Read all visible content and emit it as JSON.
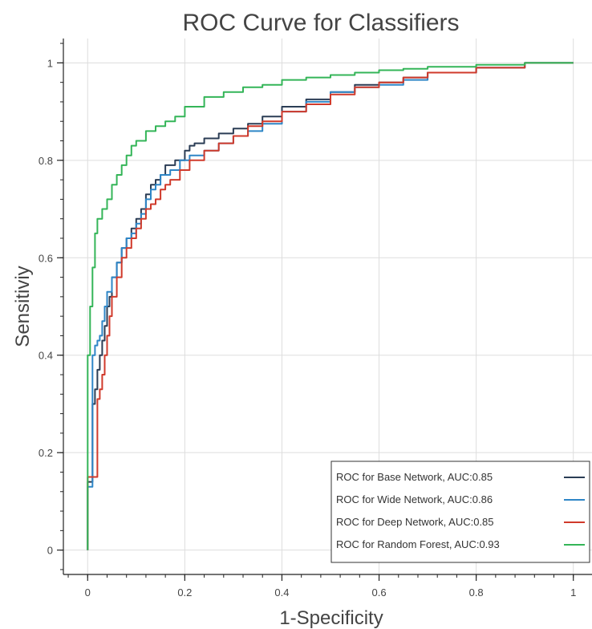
{
  "chart_data": {
    "type": "line",
    "title": "ROC Curve for Classifiers",
    "xlabel": "1-Specificity",
    "ylabel": "Sensitiviy",
    "xlim": [
      -0.05,
      1.05
    ],
    "ylim": [
      -0.05,
      1.05
    ],
    "xticks": [
      0,
      0.2,
      0.4,
      0.6,
      0.8,
      1
    ],
    "xtick_labels": [
      "0",
      "0.2",
      "0.4",
      "0.6",
      "0.8",
      "1"
    ],
    "yticks": [
      0,
      0.2,
      0.4,
      0.6,
      0.8,
      1
    ],
    "ytick_labels": [
      "0",
      "0.2",
      "0.4",
      "0.6",
      "0.8",
      "1"
    ],
    "grid": true,
    "legend_position": "bottom-right",
    "series": [
      {
        "name": "ROC for Base Network, AUC:0.85",
        "color": "#2b3d55",
        "x": [
          0,
          0,
          0.01,
          0.015,
          0.02,
          0.025,
          0.03,
          0.035,
          0.04,
          0.045,
          0.05,
          0.06,
          0.07,
          0.08,
          0.09,
          0.1,
          0.11,
          0.12,
          0.13,
          0.14,
          0.15,
          0.16,
          0.18,
          0.2,
          0.21,
          0.22,
          0.24,
          0.27,
          0.3,
          0.33,
          0.36,
          0.4,
          0.45,
          0.5,
          0.55,
          0.6,
          0.65,
          0.7,
          0.8,
          0.9,
          1
        ],
        "y": [
          0,
          0.13,
          0.14,
          0.3,
          0.33,
          0.37,
          0.4,
          0.43,
          0.46,
          0.5,
          0.52,
          0.56,
          0.59,
          0.62,
          0.64,
          0.66,
          0.68,
          0.7,
          0.73,
          0.75,
          0.76,
          0.77,
          0.79,
          0.8,
          0.82,
          0.83,
          0.835,
          0.845,
          0.855,
          0.865,
          0.875,
          0.89,
          0.91,
          0.925,
          0.94,
          0.955,
          0.96,
          0.97,
          0.98,
          0.99,
          1
        ]
      },
      {
        "name": "ROC for Wide Network, AUC:0.86",
        "color": "#2e86c7",
        "x": [
          0,
          0,
          0.01,
          0.015,
          0.02,
          0.025,
          0.03,
          0.035,
          0.04,
          0.05,
          0.06,
          0.07,
          0.08,
          0.09,
          0.1,
          0.11,
          0.12,
          0.13,
          0.14,
          0.15,
          0.17,
          0.19,
          0.21,
          0.24,
          0.27,
          0.3,
          0.33,
          0.36,
          0.4,
          0.45,
          0.5,
          0.55,
          0.6,
          0.65,
          0.7,
          0.8,
          0.9,
          1
        ],
        "y": [
          0,
          0.12,
          0.13,
          0.4,
          0.42,
          0.43,
          0.44,
          0.47,
          0.5,
          0.53,
          0.56,
          0.59,
          0.62,
          0.64,
          0.65,
          0.67,
          0.69,
          0.72,
          0.74,
          0.75,
          0.77,
          0.78,
          0.8,
          0.81,
          0.82,
          0.835,
          0.85,
          0.86,
          0.875,
          0.9,
          0.92,
          0.94,
          0.95,
          0.955,
          0.965,
          0.98,
          0.99,
          1
        ]
      },
      {
        "name": "ROC for Deep Network, AUC:0.85",
        "color": "#d03a2b",
        "x": [
          0,
          0,
          0.02,
          0.025,
          0.03,
          0.035,
          0.04,
          0.045,
          0.05,
          0.06,
          0.07,
          0.08,
          0.09,
          0.1,
          0.11,
          0.12,
          0.13,
          0.14,
          0.15,
          0.16,
          0.17,
          0.19,
          0.21,
          0.24,
          0.27,
          0.3,
          0.33,
          0.36,
          0.4,
          0.45,
          0.5,
          0.55,
          0.6,
          0.65,
          0.7,
          0.8,
          0.9,
          1
        ],
        "y": [
          0,
          0.09,
          0.15,
          0.31,
          0.33,
          0.36,
          0.4,
          0.44,
          0.48,
          0.52,
          0.56,
          0.6,
          0.62,
          0.64,
          0.66,
          0.68,
          0.7,
          0.71,
          0.72,
          0.74,
          0.75,
          0.76,
          0.78,
          0.8,
          0.82,
          0.835,
          0.85,
          0.87,
          0.88,
          0.9,
          0.915,
          0.935,
          0.95,
          0.96,
          0.97,
          0.98,
          0.99,
          1
        ]
      },
      {
        "name": "ROC for Random Forest, AUC:0.93",
        "color": "#34b558",
        "x": [
          0,
          0,
          0.005,
          0.01,
          0.015,
          0.02,
          0.03,
          0.04,
          0.05,
          0.06,
          0.07,
          0.08,
          0.09,
          0.1,
          0.12,
          0.14,
          0.16,
          0.18,
          0.2,
          0.24,
          0.28,
          0.32,
          0.36,
          0.4,
          0.45,
          0.5,
          0.55,
          0.6,
          0.65,
          0.7,
          0.8,
          0.9,
          1
        ],
        "y": [
          0,
          0.27,
          0.4,
          0.5,
          0.58,
          0.65,
          0.68,
          0.7,
          0.72,
          0.75,
          0.77,
          0.79,
          0.81,
          0.83,
          0.84,
          0.86,
          0.87,
          0.88,
          0.89,
          0.91,
          0.93,
          0.94,
          0.95,
          0.955,
          0.965,
          0.97,
          0.975,
          0.98,
          0.985,
          0.988,
          0.992,
          0.996,
          1
        ]
      }
    ]
  }
}
